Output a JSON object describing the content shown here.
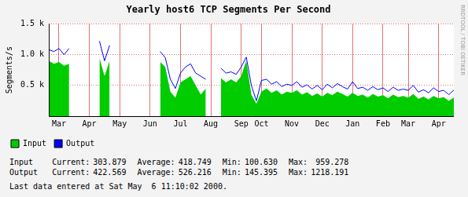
{
  "chart_data": {
    "type": "line",
    "title": "Yearly host6 TCP Segments Per Second",
    "y_label": "Segments/s",
    "categories": [
      null,
      null,
      "Mar",
      null,
      null,
      null,
      null,
      null,
      "Apr",
      null,
      null,
      null,
      null,
      null,
      "May",
      null,
      null,
      null,
      null,
      null,
      "Jun",
      null,
      null,
      null,
      null,
      null,
      "Jul",
      null,
      null,
      null,
      null,
      null,
      "Aug",
      null,
      null,
      null,
      null,
      null,
      "Sep",
      null,
      null,
      null,
      "Oct",
      null,
      null,
      null,
      null,
      null,
      "Nov",
      null,
      null,
      null,
      null,
      null,
      "Dec",
      null,
      null,
      null,
      null,
      null,
      "Jan",
      null,
      null,
      null,
      null,
      null,
      "Feb",
      null,
      null,
      null,
      null,
      "Mar",
      null,
      null,
      null,
      null,
      null,
      "Apr",
      null,
      null,
      null
    ],
    "series": [
      {
        "name": "Input",
        "color": "#00cc00",
        "type": "area",
        "values": [
          900,
          850,
          880,
          820,
          850,
          null,
          null,
          null,
          null,
          null,
          950,
          650,
          900,
          null,
          null,
          null,
          null,
          null,
          null,
          null,
          null,
          null,
          880,
          800,
          400,
          300,
          550,
          600,
          650,
          500,
          350,
          450,
          null,
          null,
          620,
          550,
          600,
          550,
          650,
          900,
          350,
          200,
          400,
          450,
          380,
          420,
          350,
          400,
          380,
          420,
          350,
          390,
          330,
          370,
          320,
          380,
          340,
          400,
          360,
          320,
          380,
          330,
          350,
          300,
          360,
          320,
          340,
          290,
          350,
          310,
          330,
          300,
          360,
          280,
          320,
          270,
          330,
          290,
          310,
          250,
          304
        ]
      },
      {
        "name": "Output",
        "color": "#0000ff",
        "type": "line",
        "values": [
          1080,
          1050,
          1100,
          1000,
          1100,
          null,
          null,
          null,
          null,
          null,
          1220,
          900,
          1150,
          null,
          null,
          null,
          null,
          null,
          null,
          null,
          null,
          null,
          1050,
          950,
          600,
          450,
          700,
          800,
          850,
          700,
          650,
          600,
          null,
          null,
          780,
          700,
          720,
          680,
          800,
          960,
          500,
          250,
          580,
          600,
          520,
          560,
          480,
          520,
          500,
          560,
          470,
          510,
          440,
          500,
          430,
          520,
          460,
          530,
          480,
          440,
          560,
          450,
          470,
          420,
          480,
          430,
          460,
          400,
          470,
          420,
          440,
          420,
          500,
          390,
          430,
          380,
          460,
          400,
          420,
          350,
          423
        ]
      }
    ],
    "ylim": [
      0,
      1500
    ],
    "yticks": [
      {
        "value": 500,
        "label": "0.5 k"
      },
      {
        "value": 1000,
        "label": "1.0 k"
      },
      {
        "value": 1500,
        "label": "1.5 k"
      }
    ],
    "grid": true,
    "legend": "bottom-left"
  },
  "side_note": "RRDTOOL / TOBI OETIKER",
  "stats": {
    "columns": [
      "Current:",
      "Average:",
      "Min:",
      "Max:"
    ],
    "rows": [
      {
        "name": "Input",
        "values": [
          "303.879",
          "418.749",
          "100.630",
          "959.278"
        ]
      },
      {
        "name": "Output",
        "values": [
          "422.569",
          "526.216",
          "145.395",
          "1218.191"
        ]
      }
    ]
  },
  "footer": "Last data entered at Sat May  6 11:10:02 2000."
}
